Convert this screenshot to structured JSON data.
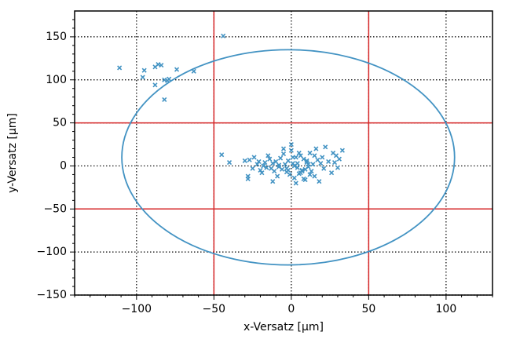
{
  "chart_data": {
    "type": "scatter",
    "xlabel": "x-Versatz [μm]",
    "ylabel": "y-Versatz [μm]",
    "xlim": [
      -140,
      130
    ],
    "ylim": [
      -150,
      180
    ],
    "xticks": [
      {
        "value": -100,
        "label": "−100"
      },
      {
        "value": -50,
        "label": "−50"
      },
      0,
      50,
      100
    ],
    "yticks": [
      {
        "value": -150,
        "label": "−150"
      },
      {
        "value": -100,
        "label": "−100"
      },
      {
        "value": -50,
        "label": "−50"
      },
      0,
      50,
      100,
      150
    ],
    "xminorticks": [
      -140,
      -130,
      -120,
      -110,
      -90,
      -80,
      -70,
      -60,
      -40,
      -30,
      -20,
      -10,
      10,
      20,
      30,
      40,
      60,
      70,
      80,
      90,
      110,
      120,
      130
    ],
    "yminorticks": [
      -140,
      -130,
      -120,
      -110,
      -90,
      -80,
      -70,
      -60,
      -40,
      -30,
      -20,
      -10,
      10,
      20,
      30,
      40,
      60,
      70,
      80,
      90,
      110,
      120,
      130,
      140,
      160,
      170
    ],
    "grid": true,
    "vlines": {
      "values": [
        -50,
        50
      ],
      "color": "#d62728"
    },
    "hlines": {
      "values": [
        50,
        -50
      ],
      "color": "#d62728"
    },
    "ellipse": {
      "cx": -2,
      "cy": 10,
      "rx": 107.5,
      "ry": 125,
      "color": "#4393c3"
    },
    "series": [
      {
        "color": "#4393c3",
        "x": [
          -111,
          -95,
          -96,
          -88,
          -86,
          -84,
          -88,
          -82,
          -80,
          -79,
          -82,
          -74,
          -63,
          -44,
          -45,
          -40,
          -30,
          -28,
          -27,
          -25,
          -24,
          -22,
          -21,
          -20,
          -19,
          -18,
          -17,
          -16,
          -15,
          -14,
          -13,
          -12,
          -11,
          -10,
          -9,
          -8,
          -7,
          -6,
          -5,
          -4,
          -3,
          -2,
          -1,
          0,
          1,
          2,
          3,
          4,
          5,
          6,
          7,
          8,
          9,
          10,
          11,
          12,
          13,
          14,
          15,
          16,
          17,
          18,
          19,
          20,
          21,
          22,
          24,
          26,
          27,
          28,
          29,
          30,
          31,
          33,
          -28,
          -12,
          -5,
          0,
          3,
          5,
          8,
          2,
          -2,
          4,
          6,
          10,
          12,
          15,
          -8,
          -3,
          1,
          7,
          9,
          11
        ],
        "y": [
          114,
          111,
          103,
          115,
          118,
          117,
          94,
          100,
          99,
          101,
          77,
          112,
          110,
          151,
          13,
          4,
          6,
          -15,
          7,
          -3,
          10,
          2,
          5,
          -5,
          -8,
          0,
          4,
          -2,
          12,
          8,
          -3,
          3,
          -6,
          5,
          -12,
          1,
          9,
          -4,
          14,
          2,
          -7,
          6,
          -10,
          18,
          3,
          -14,
          10,
          -2,
          -9,
          12,
          -5,
          8,
          -16,
          4,
          -1,
          15,
          -6,
          2,
          -12,
          20,
          7,
          -18,
          3,
          10,
          -3,
          22,
          5,
          -8,
          15,
          4,
          12,
          -2,
          8,
          18,
          -12,
          -18,
          20,
          25,
          -20,
          15,
          -15,
          0,
          -5,
          3,
          -8,
          6,
          -10,
          12,
          -1,
          -3,
          10,
          -6,
          -4,
          2
        ]
      }
    ]
  }
}
